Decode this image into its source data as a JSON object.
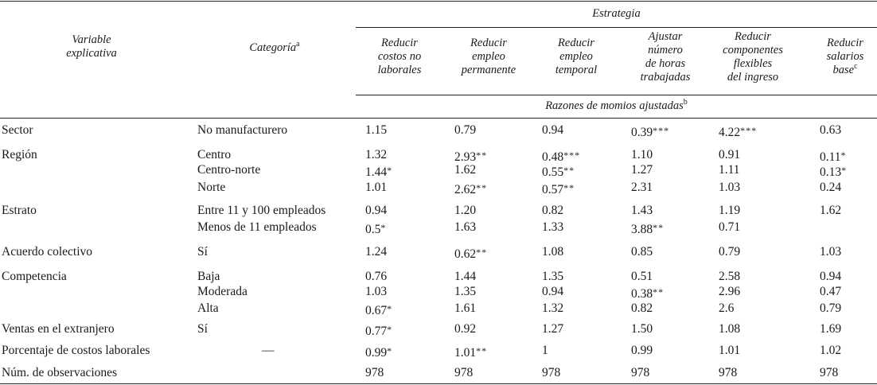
{
  "header": {
    "variable_col": [
      "Variable",
      "explicativa"
    ],
    "categoria_label": "Categoría",
    "categoria_sup": "a",
    "estrategia_label": "Estrategia",
    "strategies": [
      {
        "lines": [
          "Reducir",
          "costos no",
          "laborales"
        ],
        "sup": ""
      },
      {
        "lines": [
          "Reducir",
          "empleo",
          "permanente"
        ],
        "sup": ""
      },
      {
        "lines": [
          "Reducir",
          "empleo",
          "temporal"
        ],
        "sup": ""
      },
      {
        "lines": [
          "Ajustar",
          "número",
          "de horas",
          "trabajadas"
        ],
        "sup": ""
      },
      {
        "lines": [
          "Reducir",
          "componentes",
          "flexibles",
          "del ingreso"
        ],
        "sup": ""
      },
      {
        "lines": [
          "Reducir",
          "salarios",
          "base"
        ],
        "sup": "c"
      }
    ],
    "razones_label": "Razones de momios ajustadas",
    "razones_sup": "b"
  },
  "rows": [
    {
      "variable": "Sector",
      "category": "No manufacturero",
      "values": [
        [
          "1.15",
          ""
        ],
        [
          "0.79",
          ""
        ],
        [
          "0.94",
          ""
        ],
        [
          "0.39",
          "***"
        ],
        [
          "4.22",
          "***"
        ],
        [
          "0.63",
          ""
        ]
      ]
    },
    {
      "variable": "Región",
      "category": "Centro",
      "values": [
        [
          "1.32",
          ""
        ],
        [
          "2.93",
          "**"
        ],
        [
          "0.48",
          "***"
        ],
        [
          "1.10",
          ""
        ],
        [
          "0.91",
          ""
        ],
        [
          "0.11",
          "*"
        ]
      ]
    },
    {
      "variable": "",
      "category": "Centro-norte",
      "values": [
        [
          "1.44",
          "*"
        ],
        [
          "1.62",
          ""
        ],
        [
          "0.55",
          "**"
        ],
        [
          "1.27",
          ""
        ],
        [
          "1.11",
          ""
        ],
        [
          "0.13",
          "*"
        ]
      ]
    },
    {
      "variable": "",
      "category": "Norte",
      "values": [
        [
          "1.01",
          ""
        ],
        [
          "2.62",
          "**"
        ],
        [
          "0.57",
          "**"
        ],
        [
          "2.31",
          ""
        ],
        [
          "1.03",
          ""
        ],
        [
          "0.24",
          ""
        ]
      ]
    },
    {
      "variable": "Estrato",
      "category": "Entre 11 y 100 empleados",
      "values": [
        [
          "0.94",
          ""
        ],
        [
          "1.20",
          ""
        ],
        [
          "0.82",
          ""
        ],
        [
          "1.43",
          ""
        ],
        [
          "1.19",
          ""
        ],
        [
          "1.62",
          ""
        ]
      ]
    },
    {
      "variable": "",
      "category": "Menos de 11 empleados",
      "values": [
        [
          "0.5",
          "*"
        ],
        [
          "1.63",
          ""
        ],
        [
          "1.33",
          ""
        ],
        [
          "3.88",
          "**"
        ],
        [
          "0.71",
          ""
        ],
        [
          "",
          ""
        ]
      ]
    },
    {
      "variable": "Acuerdo colectivo",
      "category": "Sí",
      "values": [
        [
          "1.24",
          ""
        ],
        [
          "0.62",
          "**"
        ],
        [
          "1.08",
          ""
        ],
        [
          "0.85",
          ""
        ],
        [
          "0.79",
          ""
        ],
        [
          "1.03",
          ""
        ]
      ]
    },
    {
      "variable": "Competencia",
      "category": "Baja",
      "values": [
        [
          "0.76",
          ""
        ],
        [
          "1.44",
          ""
        ],
        [
          "1.35",
          ""
        ],
        [
          "0.51",
          ""
        ],
        [
          "2.58",
          ""
        ],
        [
          "0.94",
          ""
        ]
      ]
    },
    {
      "variable": "",
      "category": "Moderada",
      "values": [
        [
          "1.03",
          ""
        ],
        [
          "1.35",
          ""
        ],
        [
          "0.94",
          ""
        ],
        [
          "0.38",
          "**"
        ],
        [
          "2.96",
          ""
        ],
        [
          "0.47",
          ""
        ]
      ]
    },
    {
      "variable": "",
      "category": "Alta",
      "values": [
        [
          "0.67",
          "*"
        ],
        [
          "1.61",
          ""
        ],
        [
          "1.32",
          ""
        ],
        [
          "0.82",
          ""
        ],
        [
          "2.6",
          ""
        ],
        [
          "0.79",
          ""
        ]
      ]
    },
    {
      "variable": "Ventas en el extranjero",
      "category": "Sí",
      "values": [
        [
          "0.77",
          "*"
        ],
        [
          "0.92",
          ""
        ],
        [
          "1.27",
          ""
        ],
        [
          "1.50",
          ""
        ],
        [
          "1.08",
          ""
        ],
        [
          "1.69",
          ""
        ]
      ]
    },
    {
      "variable": "Porcentaje de costos laborales",
      "category": "—",
      "values": [
        [
          "0.99",
          "*"
        ],
        [
          "1.01",
          "**"
        ],
        [
          "1",
          ""
        ],
        [
          "0.99",
          ""
        ],
        [
          "1.01",
          ""
        ],
        [
          "1.02",
          ""
        ]
      ]
    },
    {
      "variable": "Núm. de observaciones",
      "category": "",
      "values": [
        [
          "978",
          ""
        ],
        [
          "978",
          ""
        ],
        [
          "978",
          ""
        ],
        [
          "978",
          ""
        ],
        [
          "978",
          ""
        ],
        [
          "978",
          ""
        ]
      ]
    }
  ]
}
